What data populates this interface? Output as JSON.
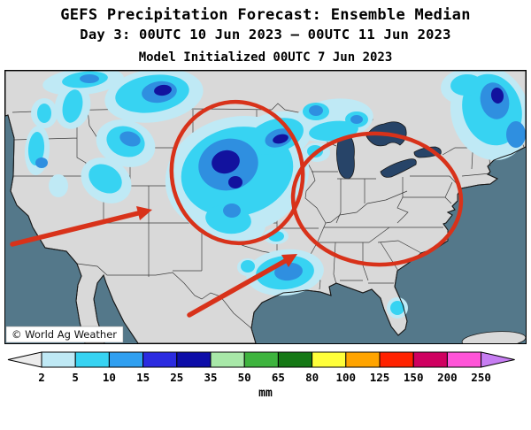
{
  "title": {
    "line1": "GEFS Precipitation Forecast: Ensemble Median",
    "line2": "Day 3: 00UTC 10 Jun 2023 — 00UTC 11 Jun 2023",
    "line3": "Model Initialized 00UTC 7 Jun 2023"
  },
  "map": {
    "credit": "© World Ag Weather",
    "colors": {
      "ocean": "#54788a",
      "land": "#d9d9d9",
      "lakes": "#274468",
      "coast": "#1a1a1a",
      "state_border": "#3c3c3c",
      "annotation": "#d8321a",
      "credit_bg": "#ffffff",
      "credit_text": "#111111"
    },
    "precip_levels": {
      "p1": "#bfe9f5",
      "p2": "#37d3f2",
      "p3": "#2f8fe0",
      "p4": "#12129e"
    }
  },
  "colorbar": {
    "unit": "mm",
    "tick_labels": [
      "2",
      "5",
      "10",
      "15",
      "25",
      "35",
      "50",
      "65",
      "80",
      "100",
      "125",
      "150",
      "200",
      "250"
    ],
    "colors": [
      "#ececec",
      "#bfe9f5",
      "#37d3f2",
      "#2f9ff0",
      "#2b2be0",
      "#0d0da8",
      "#a8e8a8",
      "#3eb43e",
      "#157815",
      "#ffff3a",
      "#ffa400",
      "#ff2200",
      "#cf0060",
      "#ff54d8",
      "#c77df2"
    ]
  },
  "chart_data": {
    "type": "heatmap",
    "title": "GEFS Precipitation Forecast: Ensemble Median",
    "subtitle": "Day 3: 00UTC 10 Jun 2023 — 00UTC 11 Jun 2023",
    "init_line": "Model Initialized 00UTC 7 Jun 2023",
    "unit": "mm",
    "scale_levels_mm": [
      2,
      5,
      10,
      15,
      25,
      35,
      50,
      65,
      80,
      100,
      125,
      150,
      200,
      250
    ],
    "regions": [
      {
        "area": "Pacific Northwest / Northern Rockies",
        "precip_mm": "2-25"
      },
      {
        "area": "Northern Plains and Upper Midwest (Dakotas, Nebraska, Minnesota, Iowa)",
        "precip_mm": "5-35"
      },
      {
        "area": "Upper Michigan / Lake Superior",
        "precip_mm": "2-15"
      },
      {
        "area": "Northeast / New England / Maine",
        "precip_mm": "5-35"
      },
      {
        "area": "Texas Gulf Coast / Louisiana",
        "precip_mm": "2-15"
      },
      {
        "area": "South Florida tip",
        "precip_mm": "2-10"
      },
      {
        "area": "Ohio Valley and Southeast (circled, mostly dry)",
        "precip_mm": "<2"
      }
    ],
    "annotations": [
      "red ellipse over Northern Plains precipitation area",
      "red ellipse over Ohio Valley / Southeast dry area",
      "red arrow pointing toward central High Plains",
      "red arrow pointing toward Lower Mississippi Valley"
    ]
  }
}
